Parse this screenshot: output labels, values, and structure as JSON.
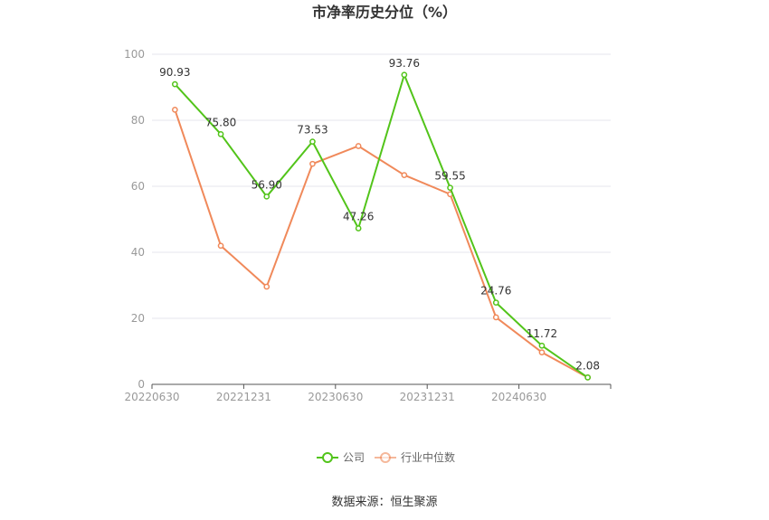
{
  "chart_data": {
    "type": "line",
    "title": "市净率历史分位（%）",
    "xlabel": "",
    "ylabel": "",
    "ylim": [
      0,
      100
    ],
    "yticks": [
      "0",
      "20",
      "40",
      "60",
      "80",
      "100"
    ],
    "x": [
      "20220630",
      "20220930",
      "20221231",
      "20230331",
      "20230630",
      "20230930",
      "20231231",
      "20240331",
      "20240630",
      "20240930"
    ],
    "xtick_labels": [
      "20220630",
      "20221231",
      "20230630",
      "20231231",
      "20240630"
    ],
    "grid": true,
    "legend_position": "bottom",
    "series": [
      {
        "name": "公司",
        "color": "#52c41a",
        "values": [
          90.93,
          75.8,
          56.9,
          73.53,
          47.26,
          93.76,
          59.55,
          24.76,
          11.72,
          2.08
        ],
        "labels": [
          "90.93",
          "75.80",
          "56.90",
          "73.53",
          "47.26",
          "93.76",
          "59.55",
          "24.76",
          "11.72",
          "2.08"
        ]
      },
      {
        "name": "行业中位数",
        "color": "#f0895a",
        "values": [
          83.2,
          42.0,
          29.6,
          66.8,
          72.2,
          63.4,
          57.6,
          20.3,
          9.7,
          2.1
        ]
      }
    ]
  },
  "source_text": "数据来源：恒生聚源"
}
